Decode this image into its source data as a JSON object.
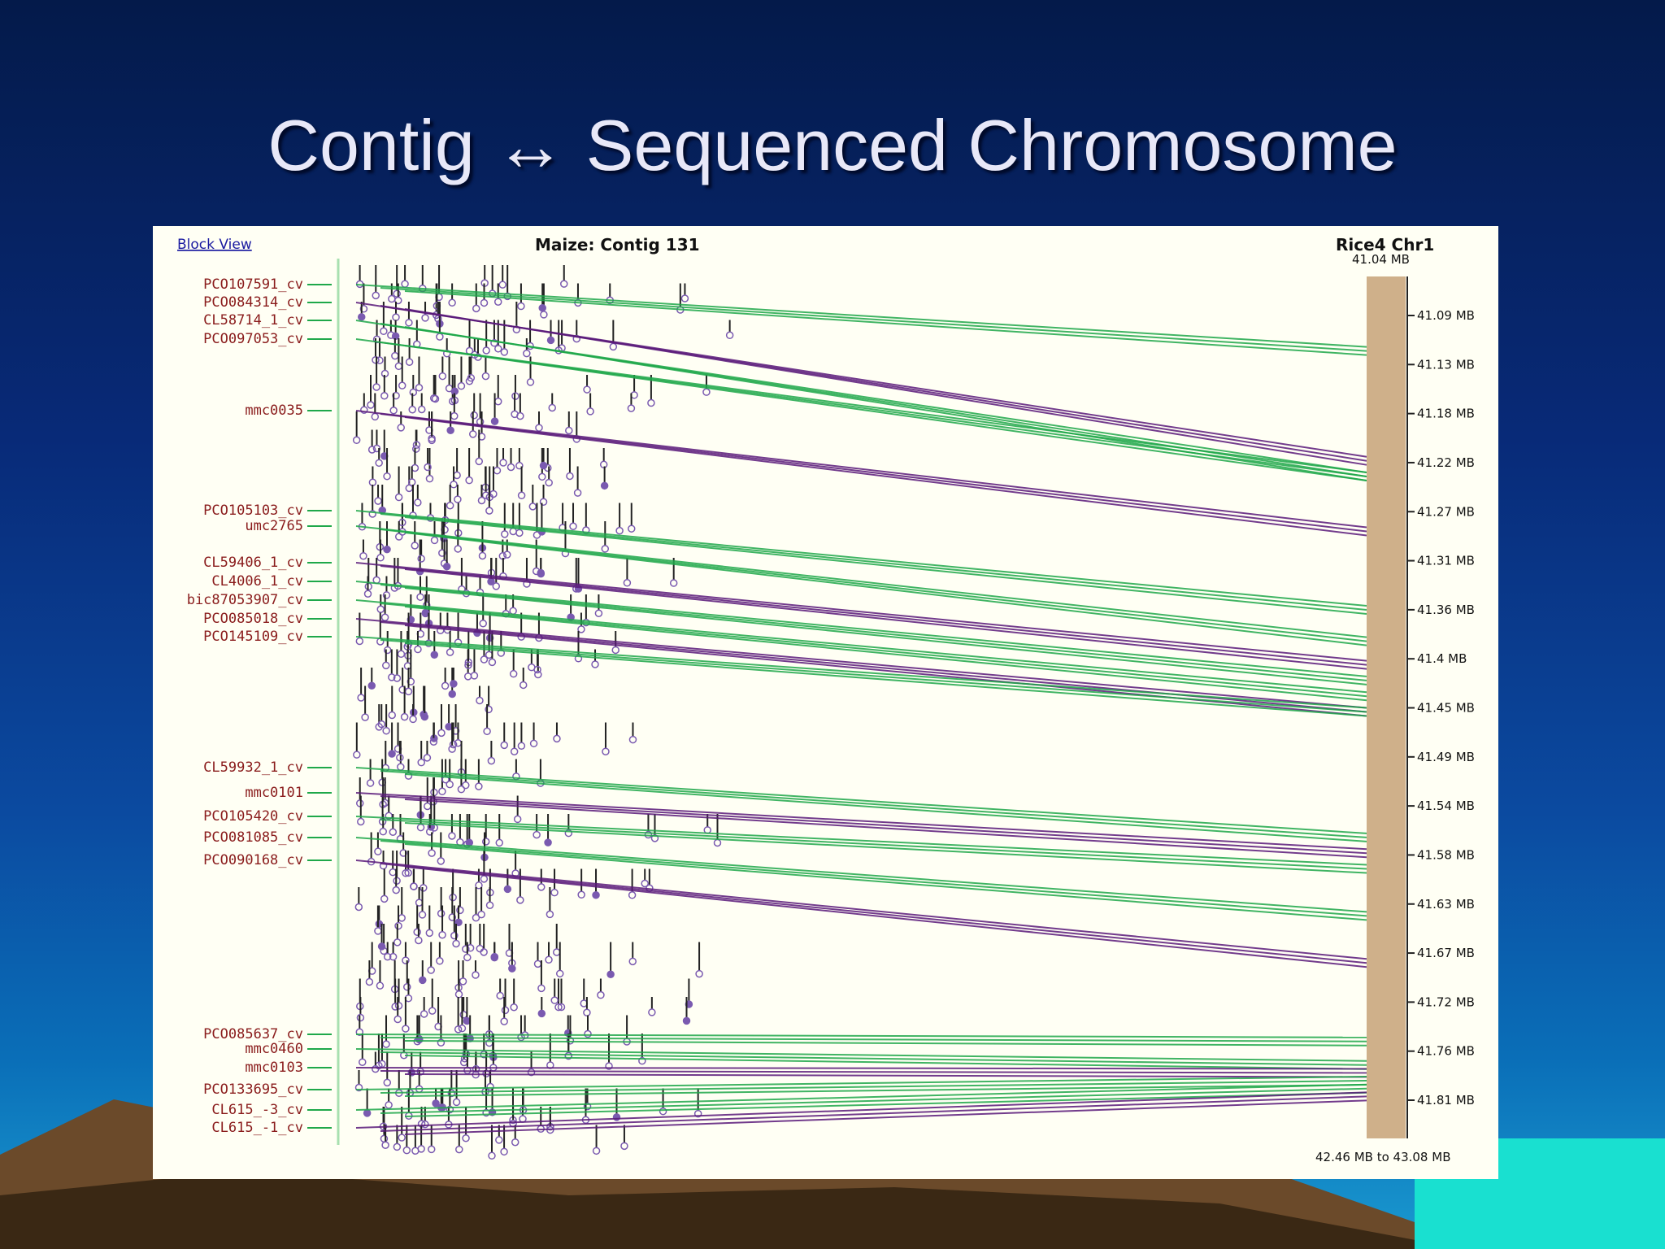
{
  "slide": {
    "title": "Contig ↔ Sequenced Chromosome"
  },
  "figure": {
    "link_label": "Block View",
    "contig_title": "Maize: Contig 131",
    "chromosome_title": "Rice4 Chr1",
    "chromosome_start": "41.04 MB",
    "range_label": "42.46 MB to 43.08 MB",
    "markers": [
      {
        "label": "PCO107591_cv",
        "target": 0.04
      },
      {
        "label": "PCO084314_cv",
        "target": 0.18
      },
      {
        "label": "CL58714_1_cv",
        "target": 0.2
      },
      {
        "label": "PCO097053_cv",
        "target": 0.2
      },
      {
        "label": "mmc0035",
        "target": 0.27
      },
      {
        "label": "PCO105103_cv",
        "target": 0.37
      },
      {
        "label": "umc2765",
        "target": 0.41
      },
      {
        "label": "CL59406_1_cv",
        "target": 0.44
      },
      {
        "label": "CL4006_1_cv",
        "target": 0.46
      },
      {
        "label": "bic87053907_cv",
        "target": 0.48
      },
      {
        "label": "PCO085018_cv",
        "target": 0.5
      },
      {
        "label": "PCO145109_cv",
        "target": 0.5
      },
      {
        "label": "CL59932_1_cv",
        "target": 0.66
      },
      {
        "label": "mmc0101",
        "target": 0.68
      },
      {
        "label": "PCO105420_cv",
        "target": 0.7
      },
      {
        "label": "PCO081085_cv",
        "target": 0.76
      },
      {
        "label": "PCO090168_cv",
        "target": 0.82
      },
      {
        "label": "PCO085637_cv",
        "target": 0.92
      },
      {
        "label": "mmc0460",
        "target": 0.95
      },
      {
        "label": "mmc0103",
        "target": 0.96
      },
      {
        "label": "PCO133695_cv",
        "target": 0.97
      },
      {
        "label": "CL615_-3_cv",
        "target": 0.98
      },
      {
        "label": "CL615_-1_cv",
        "target": 0.99
      }
    ],
    "axis_ticks": [
      "41.09 MB",
      "41.13 MB",
      "41.18 MB",
      "41.22 MB",
      "41.27 MB",
      "41.31 MB",
      "41.36 MB",
      "41.4 MB",
      "41.45 MB",
      "41.49 MB",
      "41.54 MB",
      "41.58 MB",
      "41.63 MB",
      "41.67 MB",
      "41.72 MB",
      "41.76 MB",
      "41.81 MB"
    ],
    "colors": {
      "figure_bg": "#fffff4",
      "chromosome_bar": "#cfb08a",
      "link_green": "#1fa84a",
      "link_purple": "#5a1a7a",
      "clone": "#7a5ab0",
      "label_red": "#8a1c1c"
    }
  }
}
